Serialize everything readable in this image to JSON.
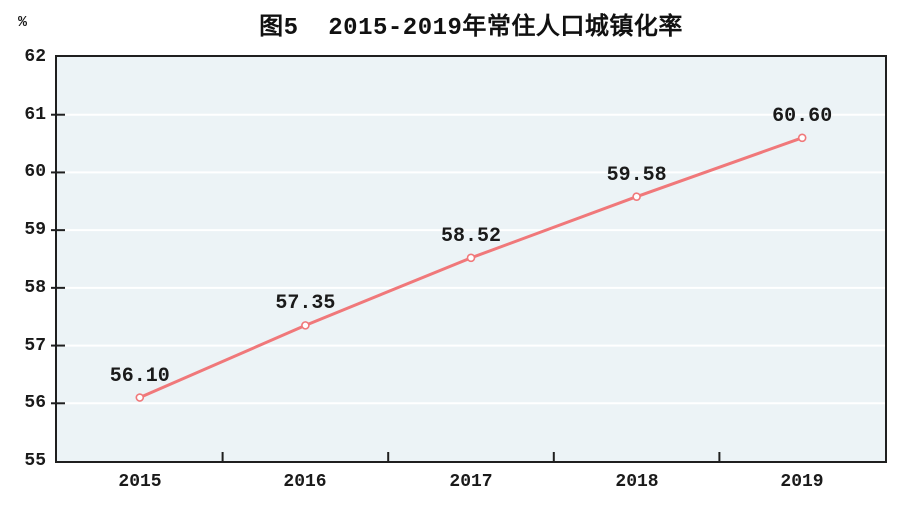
{
  "chart_data": {
    "type": "line",
    "title": "图5  2015-2019年常住人口城镇化率",
    "y_unit_label": "%",
    "categories": [
      "2015",
      "2016",
      "2017",
      "2018",
      "2019"
    ],
    "values": [
      56.1,
      57.35,
      58.52,
      59.58,
      60.6
    ],
    "data_labels": [
      "56.10",
      "57.35",
      "58.52",
      "59.58",
      "60.60"
    ],
    "ylim": [
      55,
      62
    ],
    "ytick_step": 1,
    "ytick_labels": [
      "62",
      "61",
      "60",
      "59",
      "58",
      "57",
      "56",
      "55"
    ],
    "grid": {
      "horizontal": true,
      "vertical": false,
      "color": "#ffffff"
    },
    "legend": "none",
    "colors": {
      "line": "#f0787a",
      "marker_fill": "#fefefe",
      "plot_background": "#ecf3f6",
      "axis": "#1f1f1f",
      "text": "#1a1a1a"
    }
  }
}
